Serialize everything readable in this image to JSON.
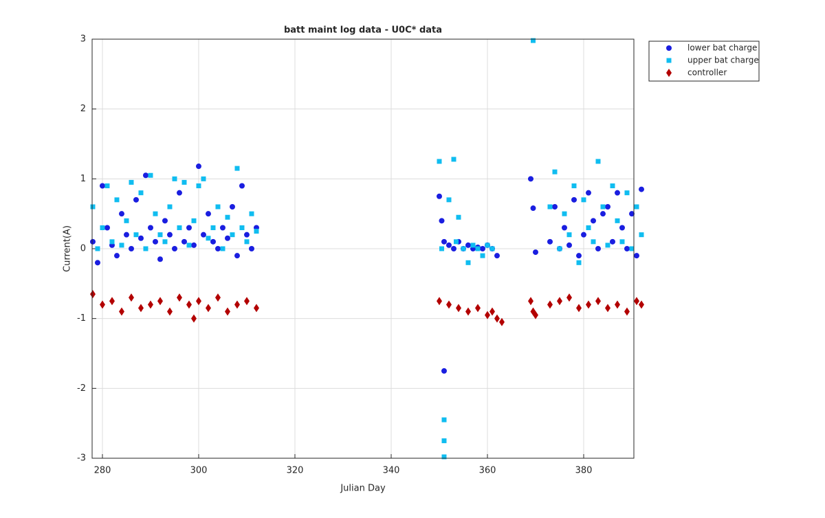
{
  "chart_data": {
    "type": "scatter",
    "title": "batt maint log data - U0C* data",
    "x_label": "Julian Day",
    "y_label": "Current(A)",
    "xlim": [
      277.86,
      390.43
    ],
    "ylim": [
      -3,
      3
    ],
    "xticks": [
      280,
      300,
      320,
      340,
      360,
      380
    ],
    "yticks": [
      -3,
      -2,
      -1,
      0,
      1,
      2,
      3
    ],
    "grid": true,
    "legend": "outside-top-right",
    "series": [
      {
        "name": "lower bat charge",
        "color": "#1a1ee0",
        "marker": "circle",
        "x": [
          278,
          279,
          280,
          281,
          282,
          283,
          284,
          285,
          286,
          287,
          288,
          289,
          290,
          291,
          292,
          293,
          294,
          295,
          296,
          297,
          298,
          299,
          300,
          301,
          302,
          303,
          304,
          305,
          306,
          307,
          308,
          309,
          310,
          311,
          312,
          350,
          351,
          350.5,
          351,
          352,
          353,
          354,
          355,
          356,
          357,
          358,
          359,
          360,
          361,
          362,
          369,
          369.5,
          370,
          373,
          374,
          375,
          376,
          377,
          378,
          379,
          380,
          381,
          382,
          383,
          384,
          385,
          386,
          387,
          388,
          389,
          390,
          391,
          392
        ],
        "values": [
          0.1,
          -0.2,
          0.9,
          0.3,
          0.05,
          -0.1,
          0.5,
          0.2,
          0.0,
          0.7,
          0.15,
          1.05,
          0.3,
          0.1,
          -0.15,
          0.4,
          0.2,
          0.0,
          0.8,
          0.1,
          0.3,
          0.05,
          1.18,
          0.2,
          0.5,
          0.1,
          0.0,
          0.3,
          0.15,
          0.6,
          -0.1,
          0.9,
          0.2,
          0.0,
          0.3,
          0.75,
          -1.75,
          0.4,
          0.1,
          0.05,
          0.0,
          0.1,
          0.0,
          0.05,
          0.0,
          0.02,
          0.0,
          0.05,
          0.0,
          -0.1,
          1.0,
          0.58,
          -0.05,
          0.1,
          0.6,
          0.0,
          0.3,
          0.05,
          0.7,
          -0.1,
          0.2,
          0.8,
          0.4,
          0.0,
          0.5,
          0.6,
          0.1,
          0.8,
          0.3,
          0.0,
          0.5,
          -0.1,
          0.85
        ]
      },
      {
        "name": "upper bat charge",
        "color": "#10bdf0",
        "marker": "square",
        "x": [
          278,
          279,
          280,
          281,
          282,
          283,
          284,
          285,
          286,
          287,
          288,
          289,
          290,
          291,
          292,
          293,
          294,
          295,
          296,
          297,
          298,
          299,
          300,
          301,
          302,
          303,
          304,
          305,
          306,
          307,
          308,
          309,
          310,
          311,
          312,
          350,
          350.5,
          351,
          351,
          351,
          352,
          353,
          353.5,
          354,
          355,
          356,
          357,
          358,
          359,
          360,
          361,
          369.5,
          373,
          374,
          375,
          376,
          377,
          378,
          379,
          380,
          381,
          382,
          383,
          384,
          385,
          386,
          387,
          388,
          389,
          390,
          391,
          392
        ],
        "values": [
          0.6,
          0.0,
          0.3,
          0.9,
          0.1,
          0.7,
          0.05,
          0.4,
          0.95,
          0.2,
          0.8,
          0.0,
          1.05,
          0.5,
          0.2,
          0.1,
          0.6,
          1.0,
          0.3,
          0.95,
          0.05,
          0.4,
          0.9,
          1.0,
          0.15,
          0.3,
          0.6,
          0.0,
          0.45,
          0.2,
          1.15,
          0.3,
          0.1,
          0.5,
          0.25,
          1.25,
          0.0,
          -2.45,
          -2.75,
          -2.98,
          0.7,
          1.28,
          0.1,
          0.45,
          0.0,
          -0.2,
          0.05,
          0.0,
          -0.1,
          0.05,
          0.0,
          2.98,
          0.6,
          1.1,
          0.0,
          0.5,
          0.2,
          0.9,
          -0.2,
          0.7,
          0.3,
          0.1,
          1.25,
          0.6,
          0.05,
          0.9,
          0.4,
          0.1,
          0.8,
          0.0,
          0.6,
          0.2
        ]
      },
      {
        "name": "controller",
        "color": "#b30000",
        "marker": "diamond",
        "x": [
          278,
          280,
          282,
          284,
          286,
          288,
          290,
          292,
          294,
          296,
          298,
          299,
          300,
          302,
          304,
          306,
          308,
          310,
          312,
          350,
          352,
          354,
          356,
          358,
          360,
          361,
          362,
          363,
          369,
          369.5,
          370,
          373,
          375,
          377,
          379,
          381,
          383,
          385,
          387,
          389,
          391,
          392
        ],
        "values": [
          -0.65,
          -0.8,
          -0.75,
          -0.9,
          -0.7,
          -0.85,
          -0.8,
          -0.75,
          -0.9,
          -0.7,
          -0.8,
          -1.0,
          -0.75,
          -0.85,
          -0.7,
          -0.9,
          -0.8,
          -0.75,
          -0.85,
          -0.75,
          -0.8,
          -0.85,
          -0.9,
          -0.85,
          -0.95,
          -0.9,
          -1.0,
          -1.05,
          -0.75,
          -0.9,
          -0.95,
          -0.8,
          -0.75,
          -0.7,
          -0.85,
          -0.8,
          -0.75,
          -0.85,
          -0.8,
          -0.9,
          -0.75,
          -0.8
        ]
      }
    ]
  }
}
